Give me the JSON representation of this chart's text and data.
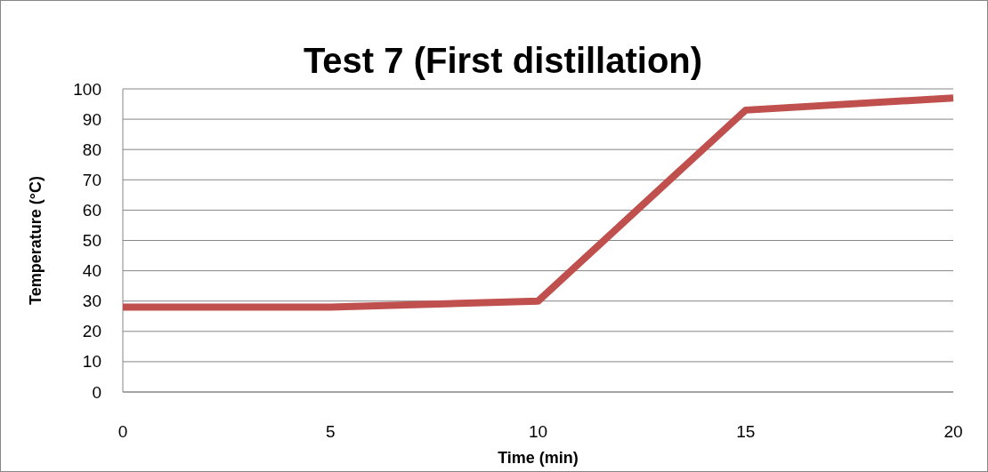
{
  "chart_data": {
    "type": "line",
    "title": "Test 7 (First distillation)",
    "xlabel": "Time (min)",
    "ylabel": "Temperature (°C)",
    "x": [
      0,
      5,
      10,
      15,
      20
    ],
    "series": [
      {
        "color": "#c0504d",
        "values": [
          28,
          28,
          30,
          93,
          97
        ]
      }
    ],
    "xlim": [
      0,
      20
    ],
    "xticks": [
      0,
      5,
      10,
      15,
      20
    ],
    "ylim": [
      0,
      100
    ],
    "yticks": [
      0,
      10,
      20,
      30,
      40,
      50,
      60,
      70,
      80,
      90,
      100
    ],
    "grid": "y",
    "marker": "none",
    "line_style": "solid"
  }
}
